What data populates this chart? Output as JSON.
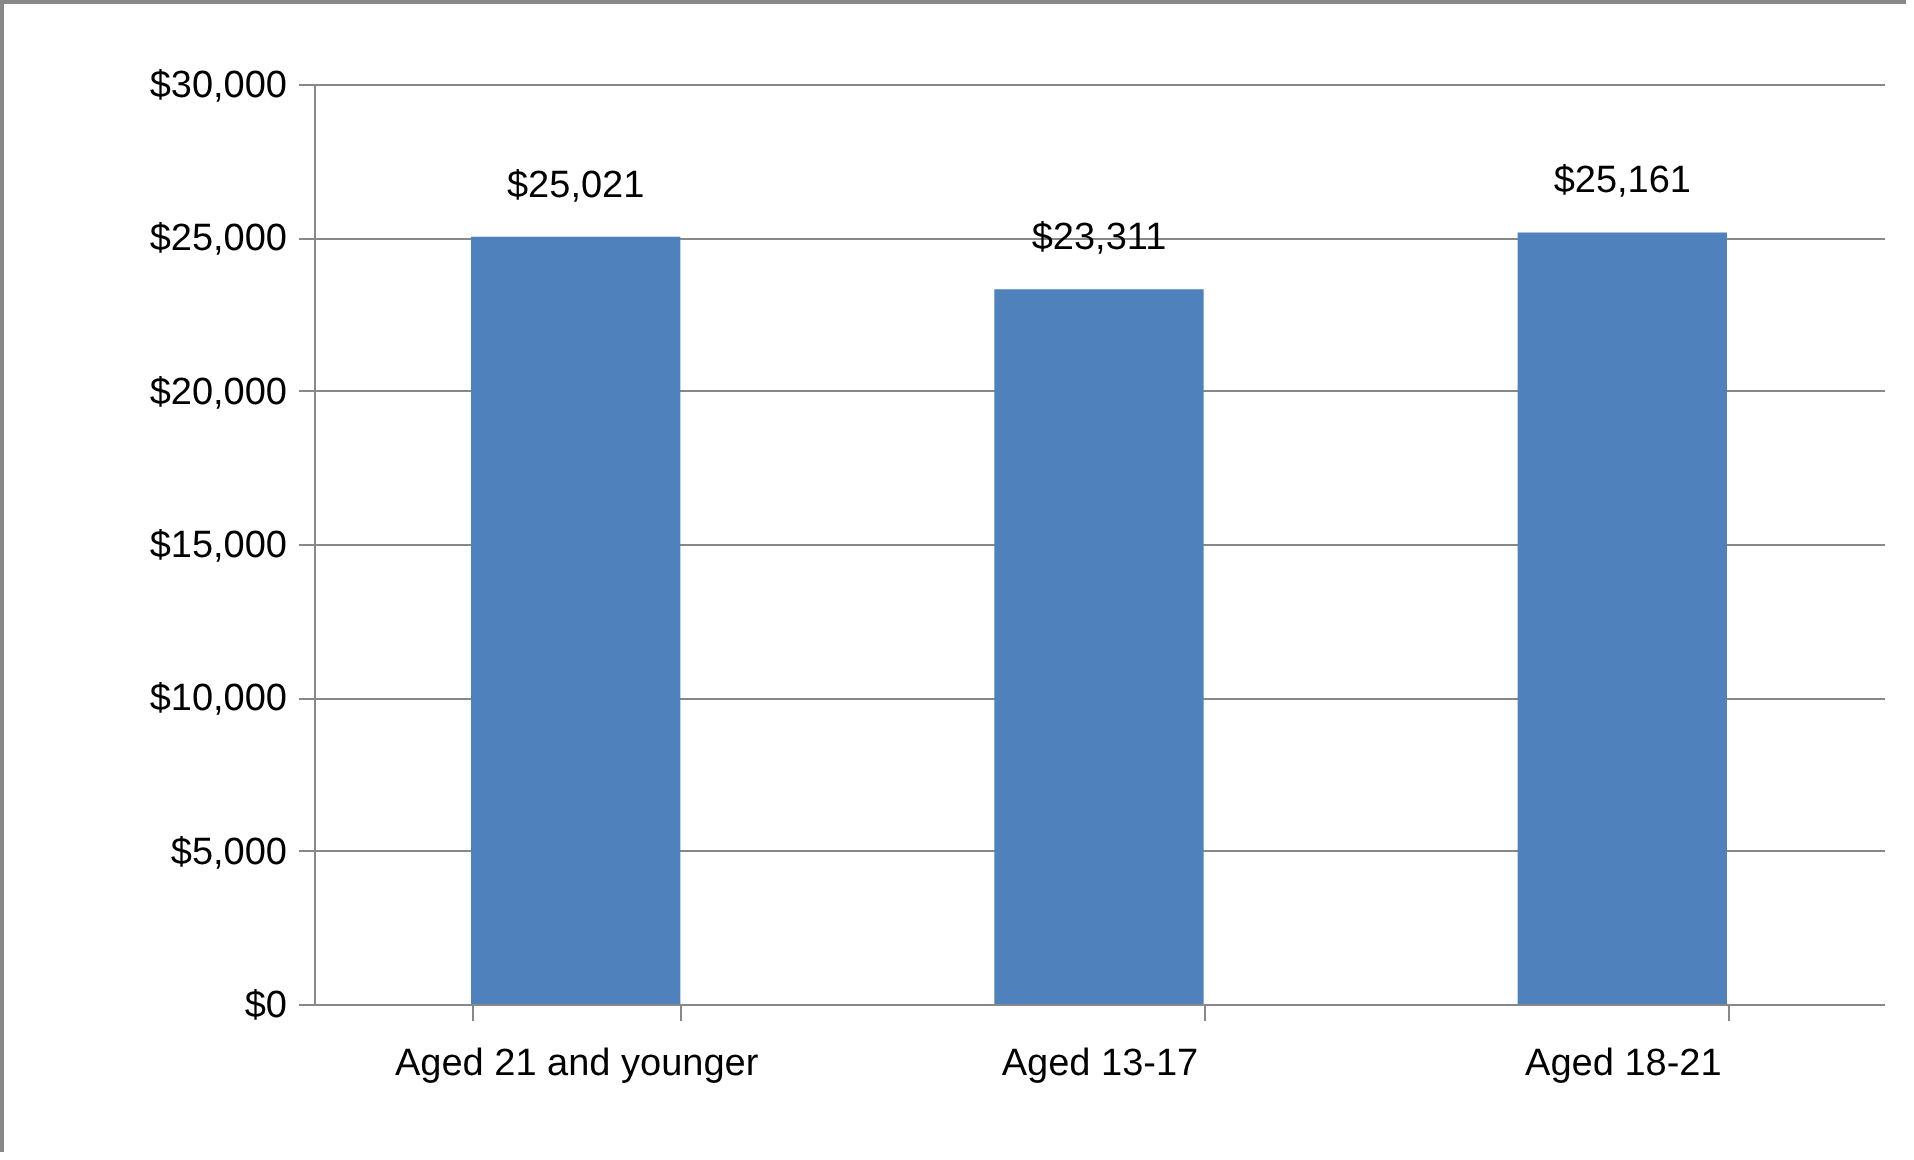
{
  "chart_data": {
    "type": "bar",
    "categories": [
      "Aged 21 and younger",
      "Aged 13-17",
      "Aged 18-21"
    ],
    "values": [
      25021,
      23311,
      25161
    ],
    "color": "#4f81bd",
    "value_labels": [
      "$25,021",
      "$23,311",
      "$25,161"
    ],
    "ylim": [
      0,
      30000
    ],
    "yticks": [
      {
        "value": 0,
        "label": "$0"
      },
      {
        "value": 5000,
        "label": "$5,000"
      },
      {
        "value": 10000,
        "label": "$10,000"
      },
      {
        "value": 15000,
        "label": "$15,000"
      },
      {
        "value": 20000,
        "label": "$20,000"
      },
      {
        "value": 25000,
        "label": "$25,000"
      },
      {
        "value": 30000,
        "label": "$30,000"
      }
    ],
    "grid": "y"
  }
}
